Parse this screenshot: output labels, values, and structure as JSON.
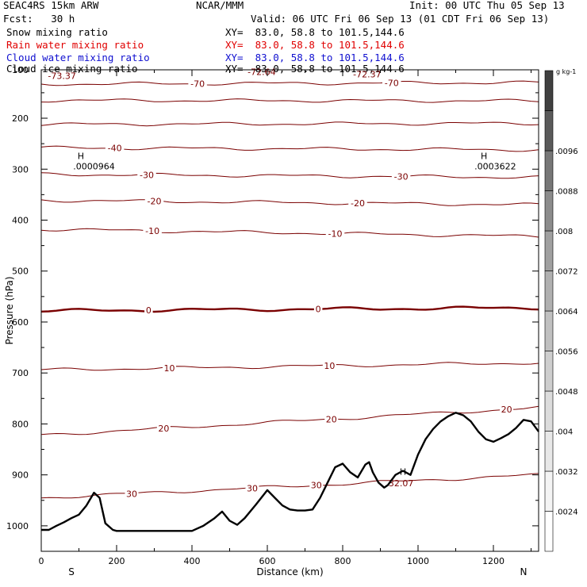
{
  "header": {
    "model": "SEAC4RS 15km ARW",
    "org": "NCAR/MMM",
    "init": "Init: 00 UTC Thu 05 Sep 13",
    "fcst": "Fcst:   30 h",
    "valid": "Valid: 06 UTC Fri 06 Sep 13 (01 CDT Fri 06 Sep 13)"
  },
  "fields": [
    {
      "name": "Snow mixing ratio",
      "xy": "XY=  83.0, 58.8 to 101.5,144.6",
      "color": "#000000"
    },
    {
      "name": "Rain water mixing ratio",
      "xy": "XY=  83.0, 58.8 to 101.5,144.6",
      "color": "#e00000"
    },
    {
      "name": "Cloud water mixing ratio",
      "xy": "XY=  83.0, 58.8 to 101.5,144.6",
      "color": "#1010d0"
    },
    {
      "name": "Cloud ice mixing ratio",
      "xy": "XY=  83.0, 58.8 to 101.5,144.6",
      "color": "#000000"
    }
  ],
  "chart_data": {
    "type": "cross-section",
    "xlabel": "Distance (km)",
    "ylabel": "Pressure (hPa)",
    "xlim": [
      0,
      1320
    ],
    "ylim": [
      1050,
      105
    ],
    "x_ticks": [
      0,
      200,
      400,
      600,
      800,
      1000,
      1200
    ],
    "y_ticks": [
      200,
      300,
      400,
      500,
      600,
      700,
      800,
      900,
      1000
    ],
    "y_tick_top_label": "100",
    "x_end_labels": [
      "S",
      "N"
    ],
    "contour_color": "#7a0000",
    "temperature_isotherms": [
      {
        "temp": -70,
        "p_left": 133,
        "p_right": 130,
        "labels": [
          {
            "x": 415,
            "text": "-70"
          },
          {
            "x": 930,
            "text": "-70"
          }
        ]
      },
      {
        "temp": -60,
        "p_left": 165,
        "p_right": 166,
        "labels": []
      },
      {
        "temp": -50,
        "p_left": 212,
        "p_right": 210,
        "labels": []
      },
      {
        "temp": -40,
        "p_left": 258,
        "p_right": 262,
        "labels": [
          {
            "x": 195,
            "text": "-40"
          }
        ]
      },
      {
        "temp": -30,
        "p_left": 310,
        "p_right": 316,
        "labels": [
          {
            "x": 280,
            "text": "-30"
          },
          {
            "x": 955,
            "text": "-30"
          }
        ]
      },
      {
        "temp": -20,
        "p_left": 361,
        "p_right": 370,
        "labels": [
          {
            "x": 300,
            "text": "-20"
          },
          {
            "x": 840,
            "text": "-20"
          }
        ]
      },
      {
        "temp": -10,
        "p_left": 418,
        "p_right": 432,
        "labels": [
          {
            "x": 295,
            "text": "-10"
          },
          {
            "x": 780,
            "text": "-10"
          }
        ]
      },
      {
        "temp": 0,
        "p_left": 578,
        "p_right": 572,
        "labels": [
          {
            "x": 285,
            "text": "0"
          },
          {
            "x": 735,
            "text": "0"
          }
        ]
      },
      {
        "temp": 10,
        "p_left": 694,
        "p_right": 680,
        "labels": [
          {
            "x": 340,
            "text": "10"
          },
          {
            "x": 765,
            "text": "10"
          }
        ]
      },
      {
        "temp": 20,
        "p_left": 822,
        "p_right": 768,
        "labels": [
          {
            "x": 325,
            "text": "20"
          },
          {
            "x": 770,
            "text": "20"
          },
          {
            "x": 1235,
            "text": "20"
          }
        ]
      },
      {
        "temp": 30,
        "p_left": 945,
        "p_right": 900,
        "labels": [
          {
            "x": 240,
            "text": "30"
          },
          {
            "x": 560,
            "text": "30"
          },
          {
            "x": 730,
            "text": "30"
          }
        ]
      }
    ],
    "extra_labels": [
      {
        "x": 55,
        "p": 123,
        "text": "-73.37"
      },
      {
        "x": 585,
        "p": 115,
        "text": "-72.64"
      },
      {
        "x": 865,
        "p": 120,
        "text": "-72.37"
      },
      {
        "x": 105,
        "p": 280,
        "text": "H"
      },
      {
        "x": 140,
        "p": 300,
        "text": ".0000964"
      },
      {
        "x": 1175,
        "p": 280,
        "text": "H"
      },
      {
        "x": 1205,
        "p": 300,
        "text": ".0003622"
      },
      {
        "x": 960,
        "p": 900,
        "text": "H"
      },
      {
        "x": 955,
        "p": 922,
        "text": "32.07"
      }
    ],
    "terrain": {
      "x": [
        0,
        20,
        40,
        60,
        80,
        100,
        120,
        140,
        155,
        170,
        190,
        200,
        220,
        260,
        300,
        350,
        400,
        430,
        460,
        480,
        500,
        520,
        540,
        570,
        600,
        620,
        640,
        660,
        680,
        700,
        720,
        740,
        760,
        780,
        800,
        820,
        840,
        860,
        870,
        880,
        895,
        910,
        920,
        940,
        960,
        980,
        1000,
        1020,
        1040,
        1060,
        1080,
        1100,
        1120,
        1140,
        1160,
        1180,
        1200,
        1220,
        1240,
        1260,
        1280,
        1300,
        1320
      ],
      "p": [
        1008,
        1008,
        1000,
        993,
        985,
        978,
        960,
        935,
        945,
        995,
        1008,
        1010,
        1010,
        1010,
        1010,
        1010,
        1010,
        1000,
        985,
        972,
        990,
        998,
        985,
        958,
        930,
        945,
        960,
        968,
        970,
        970,
        968,
        945,
        915,
        885,
        878,
        895,
        905,
        880,
        875,
        895,
        915,
        925,
        920,
        900,
        892,
        900,
        860,
        830,
        810,
        795,
        785,
        778,
        783,
        795,
        815,
        830,
        835,
        828,
        820,
        808,
        792,
        795,
        815
      ]
    },
    "colorbar": {
      "unit": "g kg-1",
      "labels": [
        ".0024",
        ".0032",
        ".004",
        ".0048",
        ".0056",
        ".0064",
        ".0072",
        ".008",
        ".0088",
        ".0096"
      ],
      "colors": [
        "#ffffff",
        "#f4f4f4",
        "#e8e8e8",
        "#dcdcdc",
        "#cecece",
        "#c0c0c0",
        "#b0b0b0",
        "#a0a0a0",
        "#8c8c8c",
        "#777777",
        "#5a5a5a",
        "#404040"
      ]
    }
  }
}
